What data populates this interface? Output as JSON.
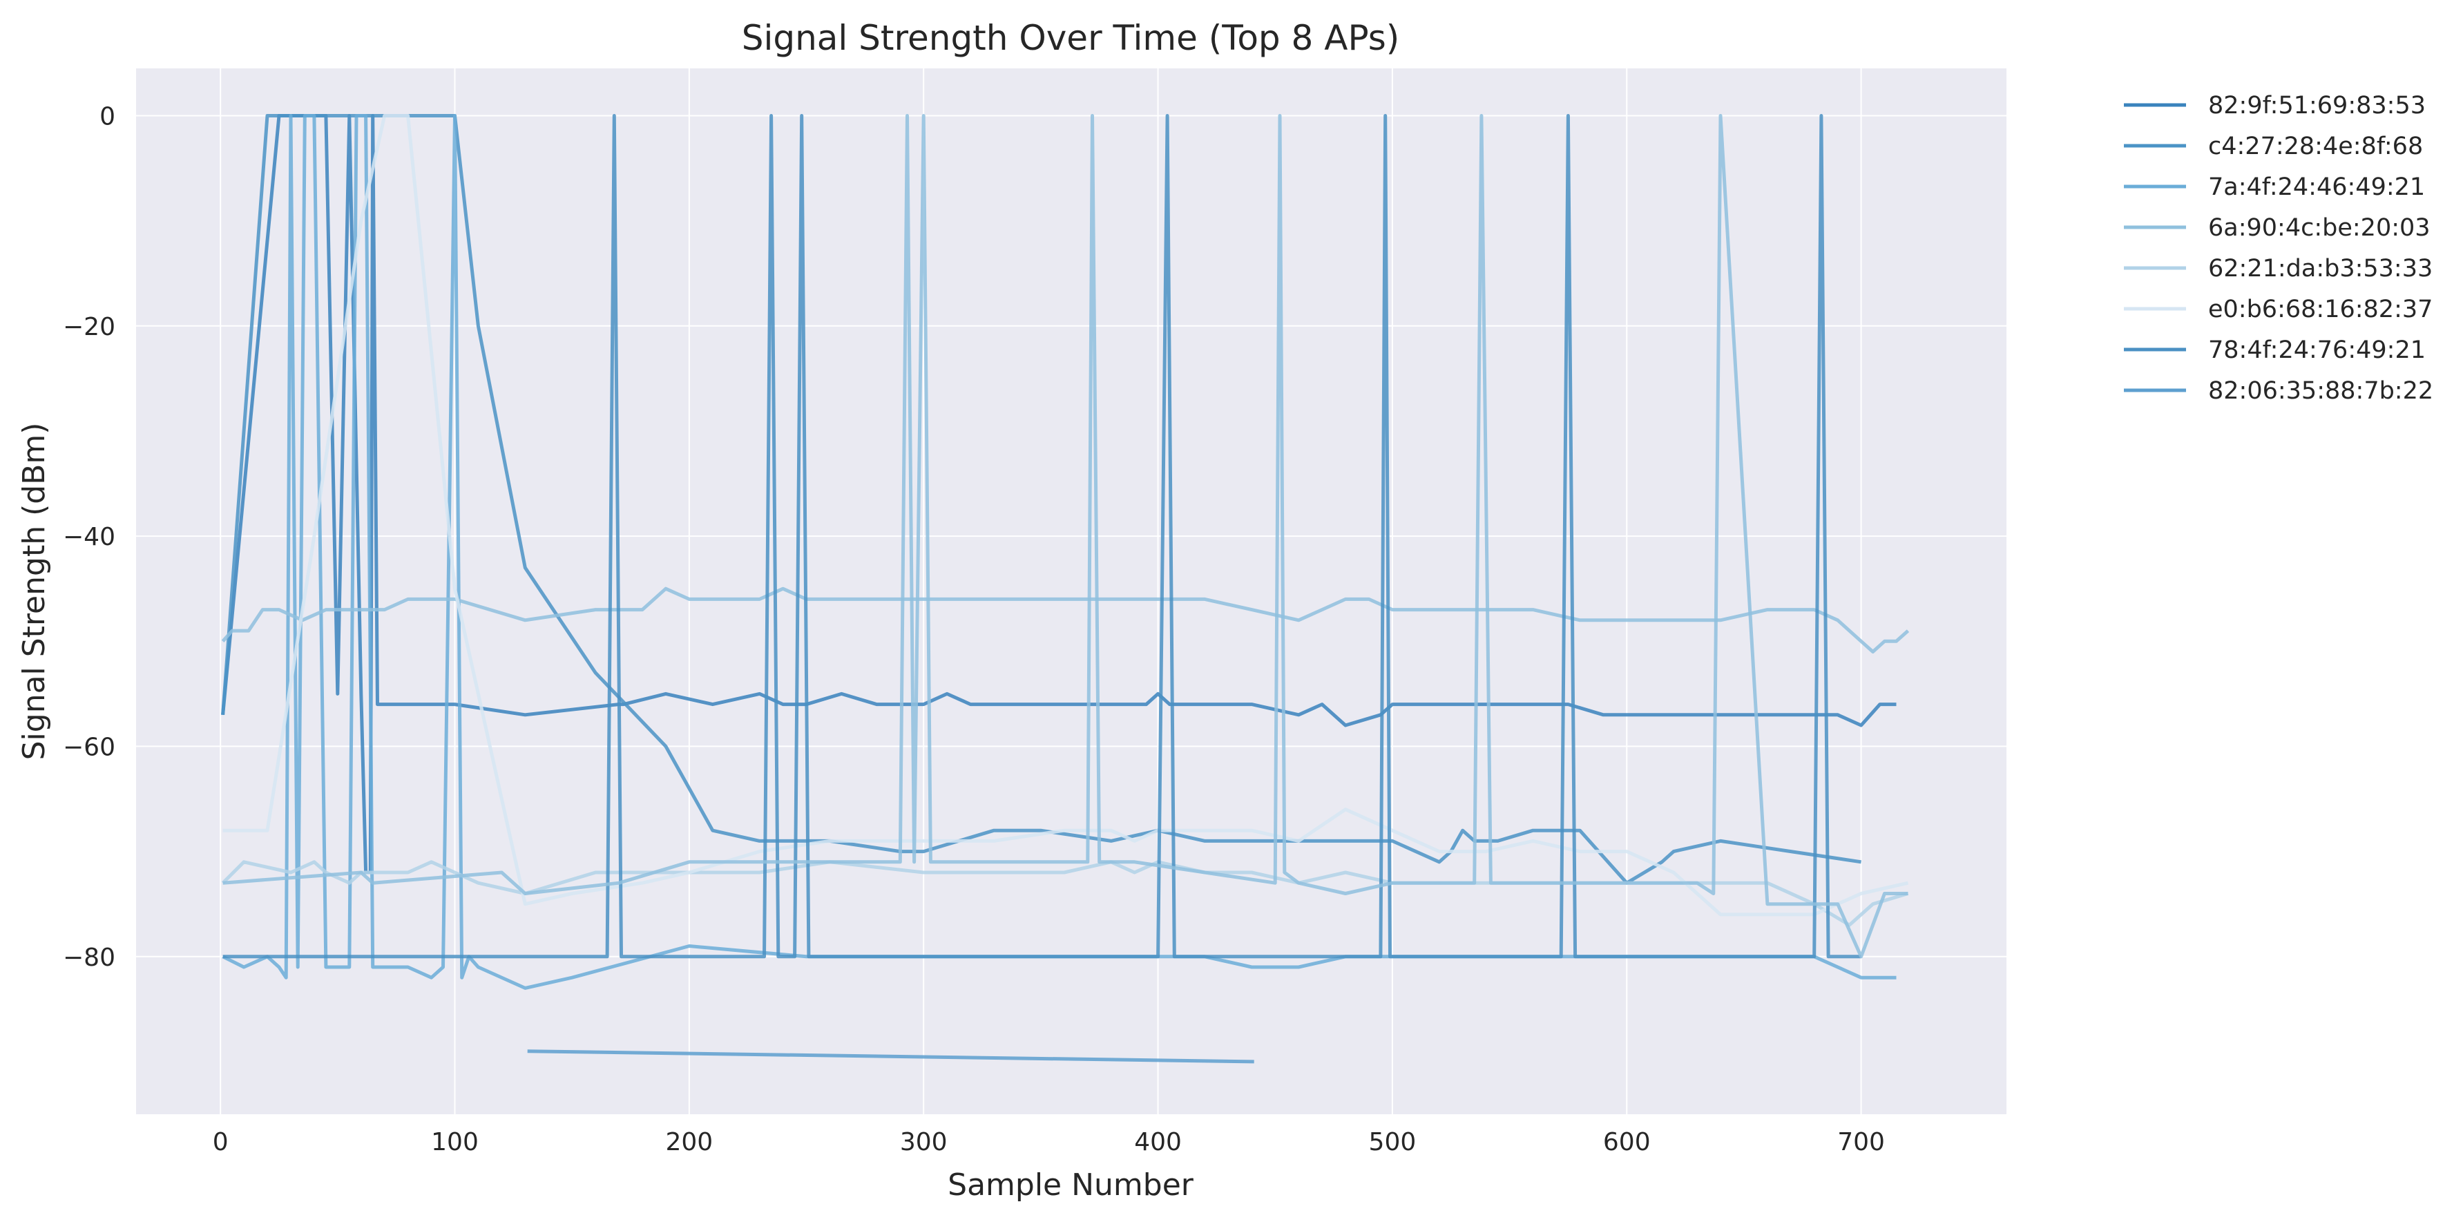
{
  "chart_data": {
    "type": "line",
    "title": "Signal Strength Over Time (Top 8 APs)",
    "xlabel": "Sample Number",
    "ylabel": "Signal Strength (dBm)",
    "xlim": [
      -36,
      762
    ],
    "ylim": [
      -95,
      4.5
    ],
    "xticks": [
      0,
      100,
      200,
      300,
      400,
      500,
      600,
      700
    ],
    "yticks": [
      0,
      -20,
      -40,
      -60,
      -80
    ],
    "grid": true,
    "legend_position": "outside-right",
    "background": "#eaeaf2",
    "series": [
      {
        "name": "82:9f:51:69:83:53",
        "color": "#3a83bd",
        "x": [
          1,
          25,
          28,
          35,
          40,
          45,
          50,
          55,
          60,
          62,
          64,
          65,
          67,
          68,
          80,
          100,
          130,
          170,
          172,
          190,
          210,
          230,
          240,
          250,
          265,
          280,
          300,
          310,
          320,
          335,
          350,
          370,
          390,
          395,
          400,
          405,
          410,
          420,
          440,
          460,
          470,
          480,
          495,
          500,
          520,
          540,
          560,
          575,
          590,
          600,
          620,
          640,
          660,
          680,
          690,
          700,
          704,
          708,
          715
        ],
        "y": [
          -57,
          0,
          0,
          0,
          0,
          0,
          -55,
          0,
          -55,
          -72,
          -72,
          0,
          -56,
          -56,
          -56,
          -56,
          -57,
          -56,
          -56,
          -55,
          -56,
          -55,
          -56,
          -56,
          -55,
          -56,
          -56,
          -55,
          -56,
          -56,
          -56,
          -56,
          -56,
          -56,
          -55,
          -56,
          -56,
          -56,
          -56,
          -57,
          -56,
          -58,
          -57,
          -56,
          -56,
          -56,
          -56,
          -56,
          -57,
          -57,
          -57,
          -57,
          -57,
          -57,
          -57,
          -58,
          -57,
          -56,
          -56
        ]
      },
      {
        "name": "c4:27:28:4e:8f:68",
        "color": "#4b93c6",
        "x": [
          1,
          20,
          26,
          32,
          38,
          42,
          50,
          60,
          75,
          90,
          95,
          100,
          110,
          130,
          160,
          190,
          210,
          230,
          260,
          290,
          300,
          330,
          350,
          380,
          400,
          420,
          450,
          480,
          500,
          520,
          525,
          530,
          535,
          545,
          560,
          580,
          600,
          615,
          620,
          640,
          670,
          700
        ],
        "y": [
          -57,
          0,
          0,
          0,
          0,
          0,
          0,
          0,
          0,
          0,
          0,
          0,
          -20,
          -43,
          -53,
          -60,
          -68,
          -69,
          -69,
          -70,
          -70,
          -68,
          -68,
          -69,
          -68,
          -69,
          -69,
          -69,
          -69,
          -71,
          -70,
          -68,
          -69,
          -69,
          -68,
          -68,
          -73,
          -71,
          -70,
          -69,
          -70,
          -71
        ]
      },
      {
        "name": "7a:4f:24:46:49:21",
        "color": "#6badd8",
        "x": [
          1,
          10,
          20,
          25,
          28,
          30,
          33,
          36,
          40,
          45,
          50,
          55,
          58,
          62,
          65,
          68,
          80,
          90,
          95,
          100,
          103,
          106,
          110,
          130,
          150,
          200,
          250,
          300,
          350,
          400,
          420,
          440,
          460,
          480,
          500,
          520,
          540,
          560,
          570,
          600,
          610,
          620,
          630,
          650,
          680,
          700,
          715
        ],
        "y": [
          -80,
          -81,
          -80,
          -81,
          -82,
          0,
          -81,
          0,
          0,
          -81,
          -81,
          -81,
          0,
          0,
          -81,
          -81,
          -81,
          -82,
          -81,
          0,
          -82,
          -80,
          -81,
          -83,
          -82,
          -79,
          -80,
          -80,
          -80,
          -80,
          -80,
          -81,
          -81,
          -80,
          -80,
          -80,
          -80,
          -80,
          -80,
          -80,
          -80,
          -80,
          -80,
          -80,
          -80,
          -82,
          -82
        ]
      },
      {
        "name": "6a:90:4c:be:20:03",
        "color": "#8fc0de",
        "x": [
          1,
          5,
          12,
          18,
          25,
          35,
          45,
          55,
          60,
          65,
          70,
          80,
          90,
          100,
          130,
          160,
          180,
          190,
          200,
          210,
          230,
          240,
          250,
          260,
          290,
          300,
          330,
          360,
          380,
          390,
          400,
          420,
          440,
          460,
          470,
          480,
          490,
          500,
          520,
          540,
          560,
          580,
          600,
          620,
          640,
          660,
          680,
          690,
          700,
          705,
          710,
          715,
          720
        ],
        "y": [
          -50,
          -49,
          -49,
          -47,
          -47,
          -48,
          -47,
          -47,
          -47,
          -47,
          -47,
          -46,
          -46,
          -46,
          -48,
          -47,
          -47,
          -45,
          -46,
          -46,
          -46,
          -45,
          -46,
          -46,
          -46,
          -46,
          -46,
          -46,
          -46,
          -46,
          -46,
          -46,
          -47,
          -48,
          -47,
          -46,
          -46,
          -47,
          -47,
          -47,
          -47,
          -48,
          -48,
          -48,
          -48,
          -47,
          -47,
          -48,
          -50,
          -51,
          -50,
          -50,
          -49
        ]
      },
      {
        "name": "62:21:da:b3:53:33",
        "color": "#b1d2e8",
        "x": [
          1,
          10,
          30,
          40,
          45,
          55,
          60,
          70,
          80,
          90,
          100,
          110,
          130,
          160,
          200,
          230,
          260,
          300,
          330,
          360,
          380,
          390,
          400,
          420,
          440,
          460,
          480,
          500,
          520,
          540,
          560,
          580,
          600,
          620,
          640,
          660,
          680,
          695,
          705,
          720
        ],
        "y": [
          -73,
          -71,
          -72,
          -71,
          -72,
          -73,
          -72,
          -72,
          -72,
          -71,
          -72,
          -73,
          -74,
          -72,
          -72,
          -72,
          -71,
          -72,
          -72,
          -72,
          -71,
          -72,
          -71,
          -72,
          -72,
          -73,
          -72,
          -73,
          -73,
          -73,
          -73,
          -73,
          -73,
          -73,
          -73,
          -73,
          -75,
          -77,
          -75,
          -74
        ]
      },
      {
        "name": "e0:b6:68:16:82:37",
        "color": "#d6e6f3",
        "x": [
          1,
          10,
          20,
          40,
          60,
          70,
          80,
          100,
          130,
          150,
          180,
          200,
          230,
          260,
          300,
          330,
          360,
          380,
          390,
          400,
          420,
          440,
          460,
          480,
          500,
          520,
          540,
          560,
          580,
          600,
          620,
          640,
          660,
          680,
          700,
          720
        ],
        "y": [
          -68,
          -68,
          -68,
          -40,
          -10,
          0,
          0,
          -45,
          -75,
          -74,
          -73,
          -72,
          -70,
          -69,
          -69,
          -69,
          -68,
          -68,
          -69,
          -68,
          -68,
          -68,
          -69,
          -66,
          -68,
          -70,
          -70,
          -69,
          -70,
          -70,
          -72,
          -76,
          -76,
          -76,
          -74,
          -73
        ]
      },
      {
        "name": "78:4f:24:76:49:21",
        "color": "#4a90c3",
        "x": [
          1,
          50,
          100,
          150,
          165,
          168,
          171,
          200,
          232,
          235,
          238,
          245,
          248,
          251,
          290,
          300,
          330,
          380,
          400,
          404,
          407,
          450,
          480,
          495,
          497,
          499,
          530,
          560,
          572,
          575,
          578,
          620,
          680,
          683,
          686,
          700
        ],
        "y": [
          -80,
          -80,
          -80,
          -80,
          -80,
          0,
          -80,
          -80,
          -80,
          0,
          -80,
          -80,
          0,
          -80,
          -80,
          -80,
          -80,
          -80,
          -80,
          0,
          -80,
          -80,
          -80,
          -80,
          0,
          -80,
          -80,
          -80,
          -80,
          0,
          -80,
          -80,
          -80,
          0,
          -80,
          -80
        ]
      },
      {
        "name": "82:06:35:88:7b:22",
        "color": "#5d9fcf",
        "x": [
          131,
          441
        ],
        "y": [
          -89,
          -90
        ]
      },
      {
        "name": "",
        "color": "#8fc0de",
        "x": [
          1,
          60,
          65,
          120,
          130,
          170,
          200,
          250,
          290,
          293,
          296,
          300,
          303,
          310,
          340,
          370,
          372,
          375,
          380,
          390,
          420,
          450,
          452,
          454,
          460,
          480,
          500,
          520,
          535,
          538,
          542,
          560,
          600,
          630,
          637,
          640,
          660,
          690,
          700,
          710,
          720
        ],
        "y": [
          -73,
          -72,
          -73,
          -72,
          -74,
          -73,
          -71,
          -71,
          -71,
          0,
          -71,
          0,
          -71,
          -71,
          -71,
          -71,
          0,
          -71,
          -71,
          -71,
          -72,
          -73,
          0,
          -72,
          -73,
          -74,
          -73,
          -73,
          -73,
          0,
          -73,
          -73,
          -73,
          -73,
          -74,
          0,
          -75,
          -75,
          -80,
          -74,
          -74
        ]
      }
    ]
  }
}
